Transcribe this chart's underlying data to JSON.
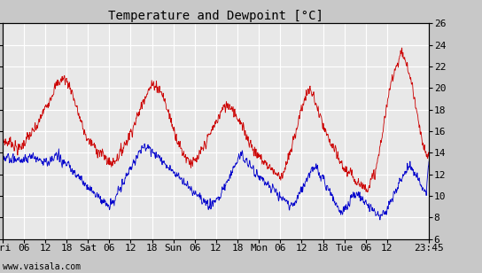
{
  "title": "Temperature and Dewpoint [°C]",
  "ylim": [
    6,
    26
  ],
  "yticks": [
    6,
    8,
    10,
    12,
    14,
    16,
    18,
    20,
    22,
    24,
    26
  ],
  "temp_color": "#cc0000",
  "dew_color": "#0000cc",
  "bg_color": "#c8c8c8",
  "plot_bg": "#e8e8e8",
  "grid_color": "#ffffff",
  "title_fontsize": 10,
  "tick_fontsize": 8,
  "watermark": "www.vaisala.com",
  "x_tick_labels": [
    "Fri",
    "06",
    "12",
    "18",
    "Sat",
    "06",
    "12",
    "18",
    "Sun",
    "06",
    "12",
    "18",
    "Mon",
    "06",
    "12",
    "18",
    "Tue",
    "06",
    "12",
    "23:45"
  ],
  "x_tick_positions": [
    0,
    6,
    12,
    18,
    24,
    30,
    36,
    42,
    48,
    54,
    60,
    66,
    72,
    78,
    84,
    90,
    96,
    102,
    108,
    119.75
  ],
  "total_hours": 119.75,
  "temp_data": [
    15.2,
    15.0,
    14.9,
    15.1,
    14.7,
    14.5,
    14.3,
    14.6,
    14.9,
    15.3,
    15.6,
    15.8,
    16.2,
    16.5,
    17.2,
    17.8,
    18.2,
    18.8,
    19.3,
    19.8,
    20.3,
    20.6,
    20.8,
    20.9,
    20.5,
    20.1,
    19.3,
    18.4,
    17.6,
    16.8,
    16.0,
    15.4,
    15.0,
    14.8,
    14.5,
    14.2,
    14.0,
    13.8,
    13.5,
    13.2,
    13.0,
    13.2,
    13.5,
    13.8,
    14.2,
    14.8,
    15.2,
    15.8,
    16.3,
    16.9,
    17.5,
    18.2,
    19.0,
    19.5,
    19.8,
    20.2,
    20.4,
    20.1,
    19.8,
    19.3,
    18.5,
    17.8,
    17.0,
    16.2,
    15.5,
    14.8,
    14.2,
    13.8,
    13.5,
    13.2,
    13.0,
    13.2,
    13.5,
    14.0,
    14.5,
    15.0,
    15.5,
    16.0,
    16.5,
    17.0,
    17.5,
    18.0,
    18.3,
    18.5,
    18.3,
    18.0,
    17.5,
    17.0,
    16.5,
    16.0,
    15.5,
    15.0,
    14.5,
    14.0,
    13.8,
    13.5,
    13.2,
    13.0,
    12.8,
    12.5,
    12.3,
    12.0,
    11.8,
    12.0,
    12.5,
    13.2,
    14.0,
    15.0,
    16.0,
    17.0,
    18.0,
    18.8,
    19.5,
    19.8,
    19.5,
    18.8,
    18.0,
    17.2,
    16.5,
    15.8,
    15.2,
    14.8,
    14.3,
    13.8,
    13.3,
    12.8,
    12.5,
    12.2,
    12.0,
    11.8,
    11.5,
    11.3,
    11.0,
    10.8,
    10.8,
    11.0,
    11.5,
    12.0,
    13.0,
    14.5,
    16.0,
    17.5,
    19.0,
    20.5,
    21.5,
    22.0,
    22.8,
    23.2,
    22.8,
    22.0,
    21.0,
    20.0,
    18.5,
    17.0,
    15.5,
    14.5,
    13.8,
    13.5
  ],
  "dew_data": [
    13.8,
    13.5,
    13.6,
    13.4,
    13.5,
    13.3,
    13.4,
    13.2,
    13.5,
    13.3,
    13.5,
    13.8,
    13.6,
    13.4,
    13.5,
    13.2,
    13.3,
    13.0,
    13.2,
    13.5,
    13.8,
    13.5,
    13.2,
    13.0,
    12.8,
    12.5,
    12.2,
    12.0,
    11.8,
    11.5,
    11.2,
    11.0,
    10.8,
    10.5,
    10.2,
    10.0,
    9.8,
    9.5,
    9.2,
    9.0,
    9.2,
    9.5,
    10.0,
    10.5,
    11.0,
    11.5,
    12.0,
    12.5,
    13.0,
    13.5,
    14.0,
    14.2,
    14.5,
    14.3,
    14.5,
    14.2,
    14.0,
    13.8,
    13.5,
    13.2,
    13.0,
    12.8,
    12.5,
    12.2,
    12.0,
    11.8,
    11.5,
    11.2,
    11.0,
    10.8,
    10.5,
    10.2,
    10.0,
    9.8,
    9.5,
    9.2,
    9.0,
    9.2,
    9.5,
    9.8,
    10.0,
    10.5,
    11.0,
    11.5,
    12.0,
    12.5,
    13.0,
    13.5,
    13.8,
    13.5,
    13.2,
    12.8,
    12.5,
    12.2,
    12.0,
    11.8,
    11.5,
    11.2,
    11.0,
    10.8,
    10.5,
    10.2,
    10.0,
    9.8,
    9.5,
    9.2,
    9.0,
    9.2,
    9.5,
    10.0,
    10.5,
    11.0,
    11.5,
    12.0,
    12.5,
    12.8,
    12.5,
    12.0,
    11.5,
    11.0,
    10.5,
    10.0,
    9.5,
    9.0,
    8.8,
    8.5,
    8.8,
    9.0,
    9.5,
    10.0,
    10.2,
    10.0,
    9.8,
    9.5,
    9.2,
    9.0,
    8.8,
    8.5,
    8.2,
    8.0,
    8.2,
    8.5,
    9.0,
    9.5,
    10.0,
    10.5,
    11.0,
    11.5,
    12.0,
    12.5,
    12.8,
    12.5,
    12.0,
    11.5,
    11.0,
    10.5,
    10.0,
    13.5
  ]
}
